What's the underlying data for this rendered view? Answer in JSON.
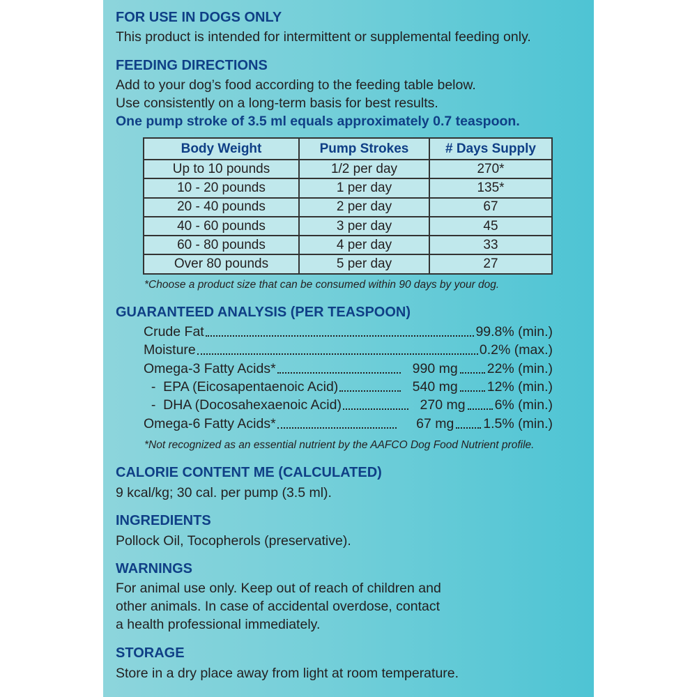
{
  "use": {
    "heading": "FOR USE IN DOGS ONLY",
    "text": "This product is intended for intermittent or supplemental feeding only."
  },
  "feeding": {
    "heading": "FEEDING DIRECTIONS",
    "line1": "Add to your dog’s food according to the feeding table below.",
    "line2": "Use consistently on a long-term basis for best results.",
    "line3": "One pump stroke of 3.5 ml equals approximately 0.7 teaspoon.",
    "table": {
      "headers": [
        "Body Weight",
        "Pump Strokes",
        "# Days Supply"
      ],
      "rows": [
        [
          "Up to 10 pounds",
          "1/2 per day",
          "270*"
        ],
        [
          "10 - 20 pounds",
          "1 per day",
          "135*"
        ],
        [
          "20 - 40 pounds",
          "2 per day",
          "67"
        ],
        [
          "40 - 60 pounds",
          "3 per day",
          "45"
        ],
        [
          "60 - 80 pounds",
          "4 per day",
          "33"
        ],
        [
          "Over 80 pounds",
          "5 per day",
          "27"
        ]
      ]
    },
    "note": "*Choose a product size that can be consumed within 90 days by your dog."
  },
  "analysis": {
    "heading": "GUARANTEED ANALYSIS (PER TEASPOON)",
    "items": [
      {
        "name": "Crude Fat",
        "mg": "",
        "pct": "99.8% (min.)"
      },
      {
        "name": "Moisture",
        "mg": "",
        "pct": "0.2% (max.)"
      },
      {
        "name": "Omega-3 Fatty Acids*",
        "mg": "990 mg",
        "pct": "22% (min.)"
      },
      {
        "name": "  -  EPA (Eicosapentaenoic Acid)",
        "mg": "540 mg",
        "pct": "12% (min.)"
      },
      {
        "name": "  -  DHA (Docosahexaenoic Acid)",
        "mg": "270 mg",
        "pct": "6% (min.)"
      },
      {
        "name": "Omega-6 Fatty Acids*",
        "mg": "67 mg",
        "pct": "1.5% (min.)"
      }
    ],
    "note": "*Not recognized as an essential nutrient by the AAFCO Dog Food Nutrient profile."
  },
  "calorie": {
    "heading": "CALORIE CONTENT ME (CALCULATED)",
    "text": "9 kcal/kg; 30 cal. per pump (3.5 ml)."
  },
  "ingredients": {
    "heading": "INGREDIENTS",
    "text": "Pollock Oil, Tocopherols (preservative)."
  },
  "warnings": {
    "heading": "WARNINGS",
    "line1": "For animal use only.  Keep out of reach of children and",
    "line2": "other animals. In case of accidental overdose, contact",
    "line3": "a health professional immediately."
  },
  "storage": {
    "heading": "STORAGE",
    "text": "Store in a dry place away from light at room temperature."
  }
}
